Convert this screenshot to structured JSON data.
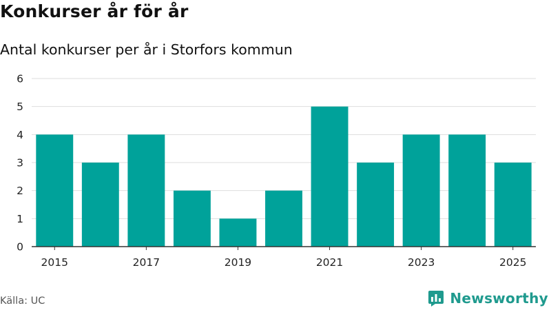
{
  "header": {
    "title": "Konkurser år för år",
    "subtitle": "Antal konkurser per år i Storfors kommun"
  },
  "footer": {
    "source": "Källa: UC",
    "brand": "Newsworthy",
    "brand_icon": "chart-logo-icon"
  },
  "colors": {
    "bar": "#00a29a",
    "grid": "#dddddd",
    "axis": "#333333",
    "brand": "#1f9a8e"
  },
  "chart_data": {
    "type": "bar",
    "title": "Konkurser år för år",
    "subtitle": "Antal konkurser per år i Storfors kommun",
    "categories": [
      "2015",
      "2016",
      "2017",
      "2018",
      "2019",
      "2020",
      "2021",
      "2022",
      "2023",
      "2024",
      "2025"
    ],
    "values": [
      4,
      3,
      4,
      2,
      1,
      2,
      5,
      3,
      4,
      4,
      3
    ],
    "x_tick_labels": [
      "2015",
      "2017",
      "2019",
      "2021",
      "2023",
      "2025"
    ],
    "y_ticks": [
      0,
      1,
      2,
      3,
      4,
      5,
      6
    ],
    "ylim": [
      0,
      6
    ],
    "xlabel": "",
    "ylabel": "",
    "grid": true
  }
}
